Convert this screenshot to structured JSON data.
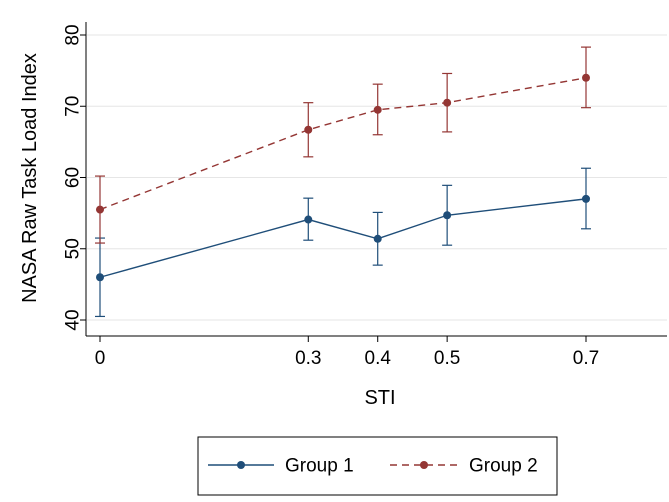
{
  "chart_data": {
    "type": "line",
    "xlabel": "STI",
    "ylabel": "NASA Raw Task Load Index",
    "x": [
      0,
      0.3,
      0.4,
      0.5,
      0.7
    ],
    "x_tick_labels": [
      "0",
      "0.3",
      "0.4",
      "0.5",
      "0.7"
    ],
    "xlim": [
      0,
      0.8
    ],
    "ylim": [
      40,
      80
    ],
    "y_ticks": [
      40,
      50,
      60,
      70,
      80
    ],
    "y_tick_labels": [
      "40",
      "50",
      "60",
      "70",
      "80"
    ],
    "grid": "horizontal",
    "error_bars": true,
    "legend_position": "bottom",
    "series": [
      {
        "name": "Group 1",
        "style": "solid",
        "color": "#1f4e79",
        "values": [
          46.0,
          54.1,
          51.4,
          54.7,
          57.0
        ],
        "error_low": [
          40.5,
          51.2,
          47.7,
          50.5,
          52.8
        ],
        "error_high": [
          51.5,
          57.1,
          55.1,
          58.9,
          61.3
        ]
      },
      {
        "name": "Group 2",
        "style": "dashed",
        "color": "#943634",
        "values": [
          55.5,
          66.7,
          69.5,
          70.5,
          74.0
        ],
        "error_low": [
          50.8,
          62.9,
          66.0,
          66.4,
          69.8
        ],
        "error_high": [
          60.2,
          70.5,
          73.1,
          74.6,
          78.3
        ]
      }
    ]
  }
}
